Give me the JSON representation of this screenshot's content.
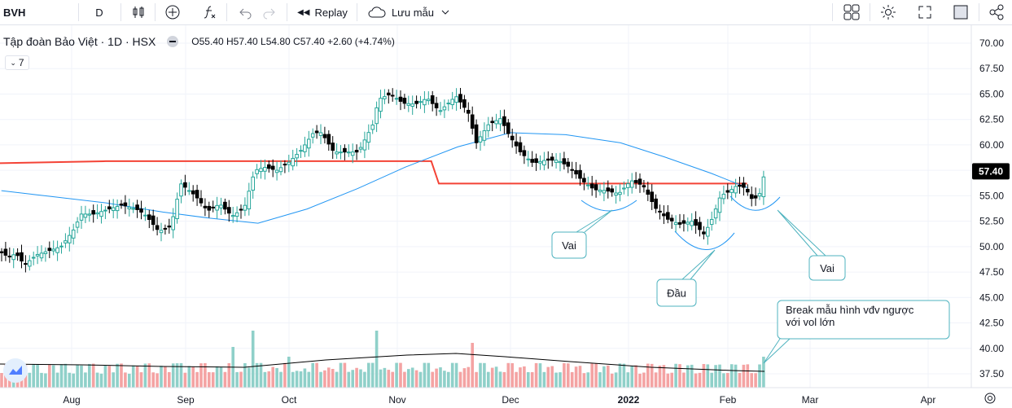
{
  "toolbar": {
    "symbol": "BVH",
    "interval": "D",
    "replay_label": "Replay",
    "layout_label": "Lưu mẫu"
  },
  "legend": {
    "title": "Tập đoàn Bảo Việt · 1D · HSX",
    "ohlc": "O55.40 H57.40 L54.80 C57.40 +2.60 (+4.74%)",
    "indicators_count": "7"
  },
  "colors": {
    "up": "#26a69a",
    "down": "#000000",
    "volume_up": "#8fd0c9",
    "volume_down": "#f4a3a3",
    "ma_line": "#2196f3",
    "resistance_line": "#f44336",
    "annotation": "#4fb3bf"
  },
  "chart_data": {
    "type": "candlestick",
    "title": "Tập đoàn Bảo Việt · 1D · HSX",
    "y_axis_ticks": [
      "70.00",
      "67.50",
      "65.00",
      "62.50",
      "60.00",
      "57.50",
      "55.00",
      "52.50",
      "50.00",
      "47.50",
      "45.00",
      "42.50",
      "40.00",
      "37.50"
    ],
    "ylim": [
      37.5,
      70.0
    ],
    "x_axis_ticks": [
      "Aug",
      "Sep",
      "Oct",
      "Nov",
      "Dec",
      "2022",
      "Feb",
      "Mar",
      "Apr"
    ],
    "last_price_label": "57.40",
    "series": [
      {
        "name": "",
        "kind": "ma",
        "x": [
          "Jul 26",
          "Aug 10",
          "Aug 25",
          "Sep 8",
          "Sep 22",
          "Oct 6",
          "Oct 20",
          "Nov 3",
          "Nov 17",
          "Dec 1",
          "Dec 15",
          "Dec 29",
          "Jan 12",
          "Jan 26",
          "Feb 8"
        ],
        "values": [
          55.5,
          54.3,
          53.4,
          52.8,
          52.3,
          53.7,
          55.7,
          57.8,
          59.8,
          61.2,
          61.0,
          60.2,
          58.8,
          57.2,
          55.8
        ]
      },
      {
        "name": "",
        "kind": "resistance",
        "x": [
          "Jul 26",
          "Aug 10",
          "Sep 8",
          "Oct 6",
          "Nov 3",
          "Nov 10",
          "Nov 12",
          "Dec 1",
          "Jan 12",
          "Feb 8"
        ],
        "values": [
          58.2,
          58.4,
          58.4,
          58.4,
          58.4,
          58.4,
          56.2,
          56.2,
          56.2,
          56.2
        ]
      }
    ],
    "annotations": [
      "Vai",
      "Đầu",
      "Vai",
      "Break mẫu hình vđv ngược với vol lớn"
    ]
  }
}
